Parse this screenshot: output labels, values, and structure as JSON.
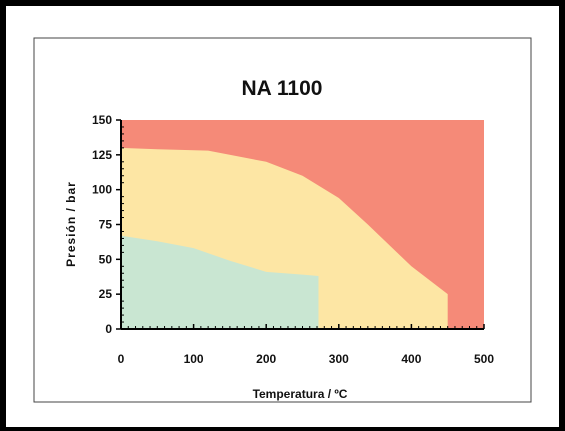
{
  "chart_data": {
    "type": "area",
    "title": "NA 1100",
    "xlabel": "Temperatura / ºC",
    "ylabel": "Presión / bar",
    "xlim": [
      0,
      500
    ],
    "ylim": [
      0,
      150
    ],
    "x_ticks": [
      0,
      100,
      200,
      300,
      400,
      500
    ],
    "y_ticks": [
      0,
      25,
      50,
      75,
      100,
      125,
      150
    ],
    "x_tick_labels": [
      "0",
      "100",
      "200",
      "300",
      "400",
      "500"
    ],
    "y_tick_labels": [
      "0",
      "25",
      "50",
      "75",
      "100",
      "125",
      "150"
    ],
    "grid": false,
    "legend": "none",
    "regions": [
      {
        "color": "#f58a78",
        "points": [
          [
            0,
            0
          ],
          [
            0,
            150
          ],
          [
            500,
            150
          ],
          [
            500,
            0
          ]
        ]
      },
      {
        "color": "#fde6a4",
        "points": [
          [
            0,
            0
          ],
          [
            0,
            130
          ],
          [
            50,
            129
          ],
          [
            120,
            128
          ],
          [
            200,
            120
          ],
          [
            250,
            110
          ],
          [
            300,
            94
          ],
          [
            340,
            75
          ],
          [
            400,
            45
          ],
          [
            450,
            25
          ],
          [
            450,
            0
          ]
        ]
      },
      {
        "color": "#c9e6d2",
        "points": [
          [
            0,
            0
          ],
          [
            0,
            67
          ],
          [
            50,
            63
          ],
          [
            100,
            58
          ],
          [
            150,
            49
          ],
          [
            200,
            41
          ],
          [
            250,
            39
          ],
          [
            272,
            38
          ],
          [
            272,
            0
          ]
        ]
      }
    ]
  }
}
